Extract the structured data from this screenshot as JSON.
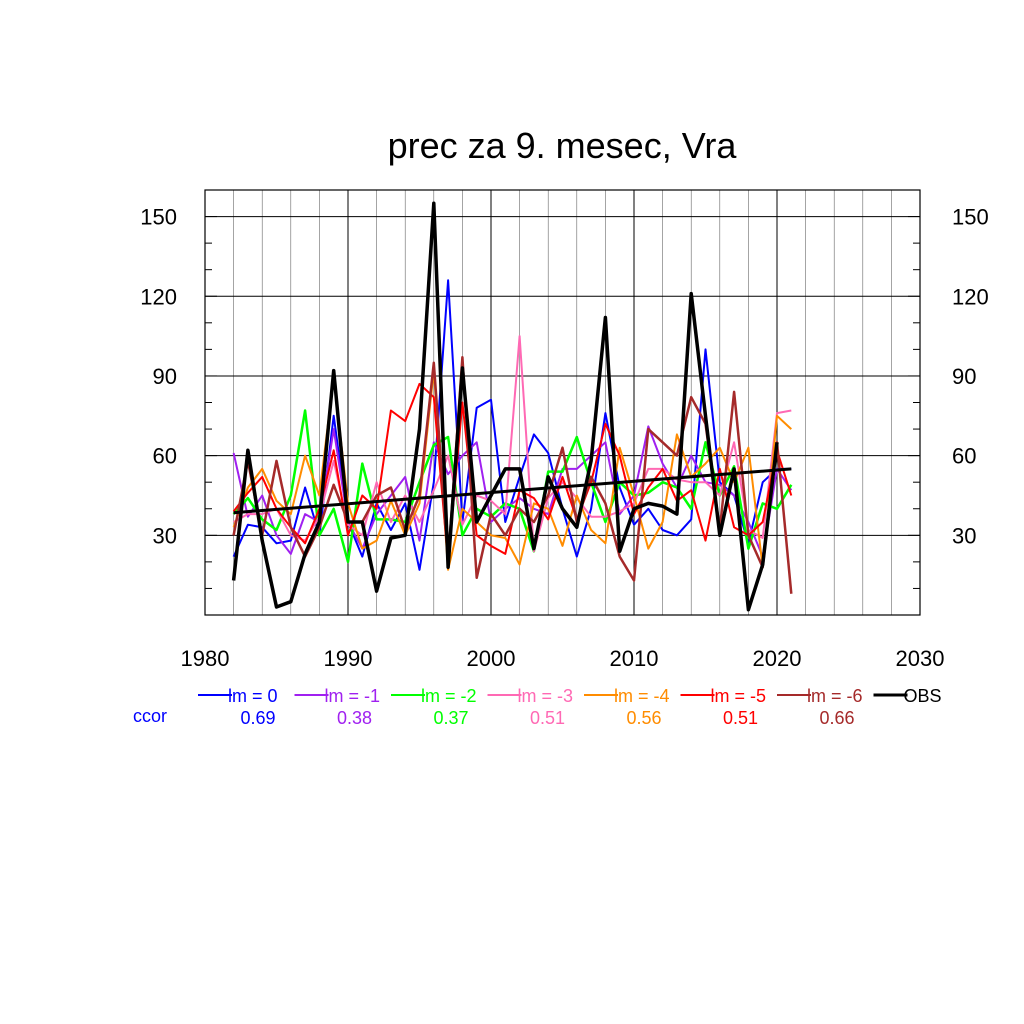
{
  "chart_data": {
    "type": "line",
    "title": "prec za 9. mesec, Vra",
    "xlabel": "",
    "ylabel": "",
    "xlim": [
      1980,
      2030
    ],
    "ylim": [
      0,
      160
    ],
    "xticks": [
      1980,
      1990,
      2000,
      2010,
      2020,
      2030
    ],
    "yticks": [
      30,
      60,
      90,
      120,
      150
    ],
    "grid": true,
    "x": [
      1982,
      1983,
      1984,
      1985,
      1986,
      1987,
      1988,
      1989,
      1990,
      1991,
      1992,
      1993,
      1994,
      1995,
      1996,
      1997,
      1998,
      1999,
      2000,
      2001,
      2002,
      2003,
      2004,
      2005,
      2006,
      2007,
      2008,
      2009,
      2010,
      2011,
      2012,
      2013,
      2014,
      2015,
      2016,
      2017,
      2018,
      2019,
      2020,
      2021
    ],
    "series": [
      {
        "name": "lm = 0",
        "color": "#0000ff",
        "width": 2,
        "values": [
          22,
          34,
          33,
          27,
          28,
          48,
          30,
          75,
          35,
          22,
          42,
          32,
          42,
          17,
          50,
          126,
          35,
          78,
          81,
          35,
          52,
          68,
          61,
          40,
          22,
          40,
          76,
          48,
          34,
          40,
          32,
          30,
          36,
          100,
          50,
          45,
          27,
          50,
          55,
          55
        ]
      },
      {
        "name": "lm = -1",
        "color": "#a020f0",
        "width": 2,
        "values": [
          61,
          37,
          45,
          30,
          23,
          38,
          35,
          70,
          35,
          25,
          38,
          45,
          52,
          28,
          65,
          53,
          60,
          65,
          35,
          40,
          44,
          40,
          38,
          55,
          55,
          60,
          65,
          38,
          45,
          71,
          57,
          48,
          60,
          50,
          49,
          45,
          35,
          22,
          55,
          47
        ]
      },
      {
        "name": "lm = -2",
        "color": "#00ff00",
        "width": 2.5,
        "values": [
          38,
          44,
          36,
          32,
          45,
          77,
          30,
          40,
          20,
          57,
          36,
          36,
          35,
          50,
          64,
          67,
          30,
          40,
          37,
          42,
          40,
          24,
          54,
          54,
          67,
          50,
          35,
          50,
          45,
          46,
          50,
          48,
          40,
          65,
          45,
          56,
          25,
          42,
          40,
          49
        ]
      },
      {
        "name": "lm = -3",
        "color": "#ff69b4",
        "width": 2,
        "values": [
          35,
          38,
          38,
          40,
          30,
          28,
          37,
          58,
          34,
          30,
          50,
          35,
          45,
          35,
          47,
          60,
          34,
          45,
          43,
          38,
          105,
          24,
          44,
          50,
          44,
          37,
          37,
          39,
          42,
          55,
          55,
          51,
          50,
          50,
          45,
          65,
          32,
          29,
          76,
          77
        ]
      },
      {
        "name": "lm = -4",
        "color": "#ff8c00",
        "width": 2,
        "values": [
          33,
          48,
          55,
          43,
          38,
          60,
          45,
          90,
          42,
          25,
          28,
          43,
          30,
          42,
          92,
          17,
          40,
          35,
          30,
          29,
          19,
          42,
          40,
          26,
          45,
          32,
          27,
          63,
          45,
          25,
          35,
          68,
          52,
          57,
          63,
          50,
          63,
          18,
          75,
          70
        ]
      },
      {
        "name": "lm = -5",
        "color": "#ff0000",
        "width": 2,
        "values": [
          39,
          46,
          52,
          40,
          33,
          27,
          40,
          62,
          30,
          45,
          40,
          77,
          73,
          87,
          82,
          20,
          80,
          30,
          26,
          23,
          47,
          44,
          36,
          52,
          36,
          50,
          72,
          60,
          38,
          48,
          55,
          43,
          47,
          28,
          55,
          33,
          30,
          35,
          62,
          45
        ]
      },
      {
        "name": "lm = -6",
        "color": "#a52a2a",
        "width": 2.5,
        "values": [
          30,
          58,
          30,
          58,
          33,
          22,
          33,
          49,
          35,
          35,
          45,
          48,
          32,
          45,
          95,
          20,
          97,
          14,
          38,
          30,
          40,
          35,
          45,
          63,
          35,
          52,
          42,
          22,
          13,
          70,
          65,
          60,
          82,
          72,
          32,
          84,
          30,
          18,
          65,
          8
        ]
      },
      {
        "name": "OBS",
        "color": "#000000",
        "width": 3.5,
        "values": [
          13,
          62,
          28,
          3,
          5,
          23,
          35,
          92,
          35,
          35,
          9,
          29,
          30,
          70,
          155,
          18,
          93,
          35,
          45,
          55,
          55,
          25,
          52,
          40,
          33,
          58,
          112,
          24,
          40,
          42,
          41,
          38,
          121,
          75,
          30,
          55,
          2,
          19,
          65,
          null
        ]
      }
    ],
    "trend": {
      "color": "#000000",
      "from": [
        1982,
        38.5
      ],
      "to": [
        2021,
        55
      ]
    },
    "legend_position": "below"
  },
  "legend": {
    "row_label": "ccor",
    "row_label_color": "#0000ff",
    "items": [
      {
        "label": "lm = 0",
        "ccor": "0.69",
        "color": "#0000ff"
      },
      {
        "label": "lm = -1",
        "ccor": "0.38",
        "color": "#a020f0"
      },
      {
        "label": "lm = -2",
        "ccor": "0.37",
        "color": "#00ff00"
      },
      {
        "label": "lm = -3",
        "ccor": "0.51",
        "color": "#ff69b4"
      },
      {
        "label": "lm = -4",
        "ccor": "0.56",
        "color": "#ff8c00"
      },
      {
        "label": "lm = -5",
        "ccor": "0.51",
        "color": "#ff0000"
      },
      {
        "label": "lm = -6",
        "ccor": "0.66",
        "color": "#a52a2a"
      },
      {
        "label": "OBS",
        "ccor": "",
        "color": "#000000"
      }
    ]
  }
}
